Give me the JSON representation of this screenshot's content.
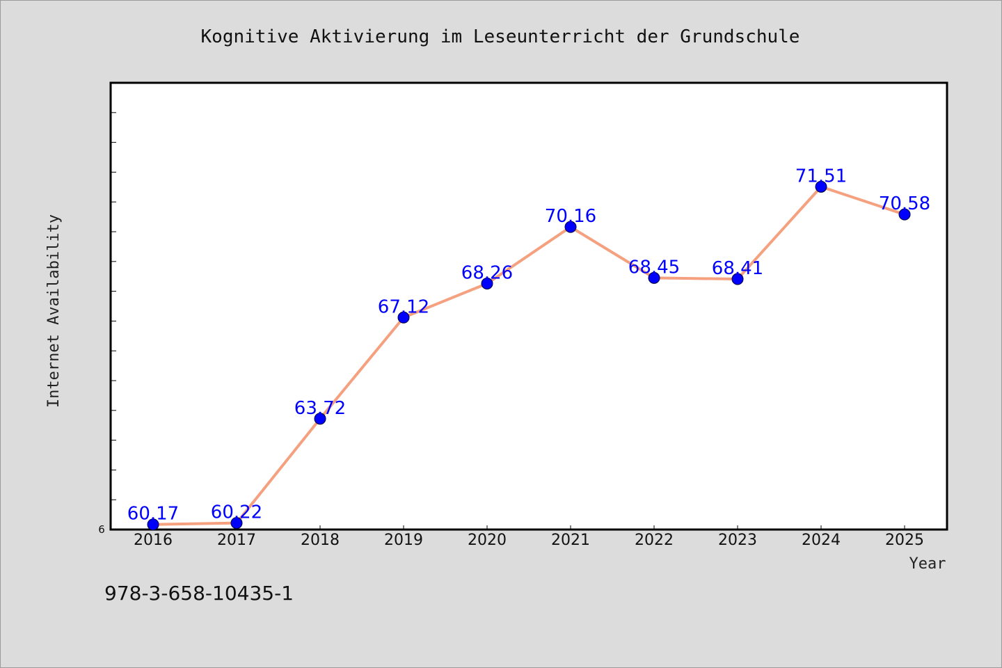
{
  "chart_data": {
    "type": "line",
    "title": "Kognitive Aktivierung im Leseunterricht der Grundschule",
    "xlabel": "Year",
    "ylabel": "Internet Availability",
    "x": [
      "2016",
      "2017",
      "2018",
      "2019",
      "2020",
      "2021",
      "2022",
      "2023",
      "2024",
      "2025"
    ],
    "series": [
      {
        "values": [
          60.17,
          60.22,
          63.72,
          67.12,
          68.26,
          70.16,
          68.45,
          68.41,
          71.51,
          70.58
        ],
        "labels": [
          "60.17",
          "60.22",
          "63.72",
          "67.12",
          "68.26",
          "70.16",
          "68.45",
          "68.41",
          "71.51",
          "70.58"
        ]
      }
    ],
    "ylim": [
      60,
      75
    ],
    "y_tick_labels": [
      "6"
    ],
    "grid": false,
    "line_color": "#f5a07f",
    "marker_color": "#0000ff",
    "label_color": "#0000ff"
  },
  "footer": {
    "isbn": "978-3-658-10435-1"
  }
}
